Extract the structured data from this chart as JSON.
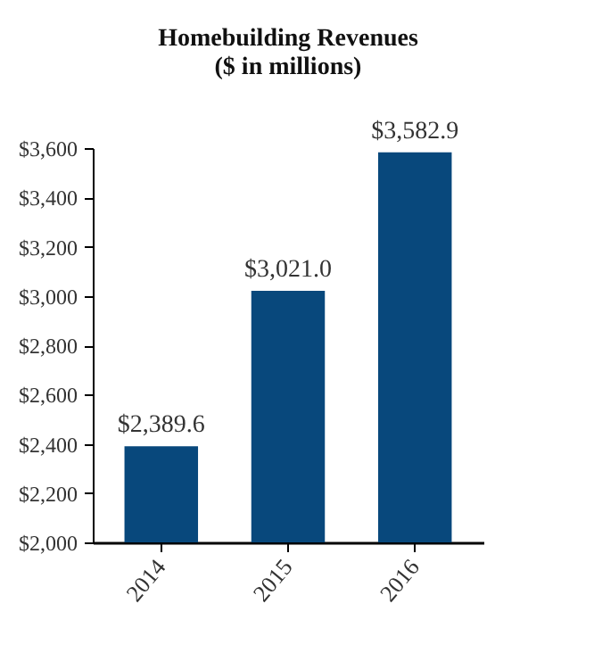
{
  "chart_data": {
    "type": "bar",
    "title": "Homebuilding Revenues",
    "subtitle": "($ in millions)",
    "categories": [
      "2014",
      "2015",
      "2016"
    ],
    "values": [
      2389.6,
      3021.0,
      3582.9
    ],
    "value_labels": [
      "$2,389.6",
      "$3,021.0",
      "$3,582.9"
    ],
    "color": "#08487c",
    "ylim": [
      2000,
      3600
    ],
    "yticks": [
      {
        "value": 2000,
        "label": "$2,000"
      },
      {
        "value": 2200,
        "label": "$2,200"
      },
      {
        "value": 2400,
        "label": "$2,400"
      },
      {
        "value": 2600,
        "label": "$2,600"
      },
      {
        "value": 2800,
        "label": "$2,800"
      },
      {
        "value": 3000,
        "label": "$3,000"
      },
      {
        "value": 3200,
        "label": "$3,200"
      },
      {
        "value": 3400,
        "label": "$3,400"
      },
      {
        "value": 3600,
        "label": "$3,600"
      }
    ],
    "grid": false
  }
}
